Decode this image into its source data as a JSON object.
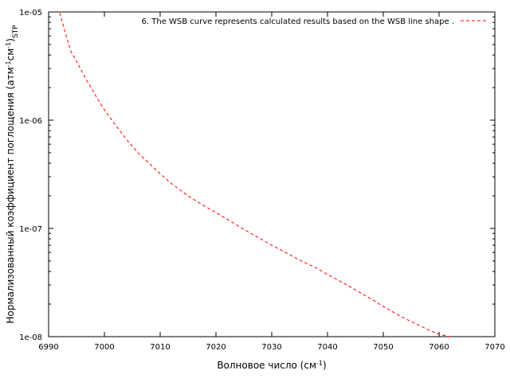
{
  "chart_data": {
    "type": "line",
    "xlabel_main": "Волновое число (см",
    "xlabel_sup": "-1",
    "xlabel_close": ")",
    "ylabel_main": "Нормализованный коэффициент поглощения (атм",
    "ylabel_sup1": "-1",
    "ylabel_mid": "см",
    "ylabel_sup2": "-1",
    "ylabel_close": ")",
    "ylabel_sub": "STP",
    "xlim": [
      6990,
      7070
    ],
    "ylim": [
      1e-08,
      1e-05
    ],
    "yscale": "log",
    "grid": false,
    "legend_position": "top-right",
    "x_ticks": [
      6990,
      7000,
      7010,
      7020,
      7030,
      7040,
      7050,
      7060,
      7070
    ],
    "x_tick_labels": [
      "6990",
      "7000",
      "7010",
      "7020",
      "7030",
      "7040",
      "7050",
      "7060",
      "7070"
    ],
    "y_ticks": [
      1e-08,
      1e-07,
      1e-06,
      1e-05
    ],
    "y_tick_labels": [
      "1e-08",
      "1e-07",
      "1e-06",
      "1e-05"
    ],
    "series": [
      {
        "name": "6. The WSB curve represents calculated results based on the WSB line shape .",
        "color": "#ff0000",
        "dash": "dashed",
        "x": [
          6992,
          6993,
          6994,
          6995,
          6996,
          6997,
          6998,
          6999,
          7000,
          7002,
          7004,
          7006,
          7008,
          7010,
          7012,
          7015,
          7018,
          7020,
          7022,
          7025,
          7028,
          7030,
          7033,
          7035,
          7038,
          7040,
          7043,
          7045,
          7048,
          7050,
          7053,
          7055,
          7058,
          7060,
          7062
        ],
        "y": [
          9.8e-06,
          6.4e-06,
          4.3e-06,
          3.5e-06,
          2.8e-06,
          2.25e-06,
          1.85e-06,
          1.5e-06,
          1.25e-06,
          9e-07,
          6.6e-07,
          5e-07,
          4e-07,
          3.2e-07,
          2.6e-07,
          2e-07,
          1.6e-07,
          1.4e-07,
          1.22e-07,
          9.8e-08,
          8e-08,
          7e-08,
          5.8e-08,
          5.1e-08,
          4.3e-08,
          3.75e-08,
          3.1e-08,
          2.7e-08,
          2.2e-08,
          1.9e-08,
          1.55e-08,
          1.38e-08,
          1.16e-08,
          1.05e-08,
          1e-08
        ]
      }
    ]
  }
}
